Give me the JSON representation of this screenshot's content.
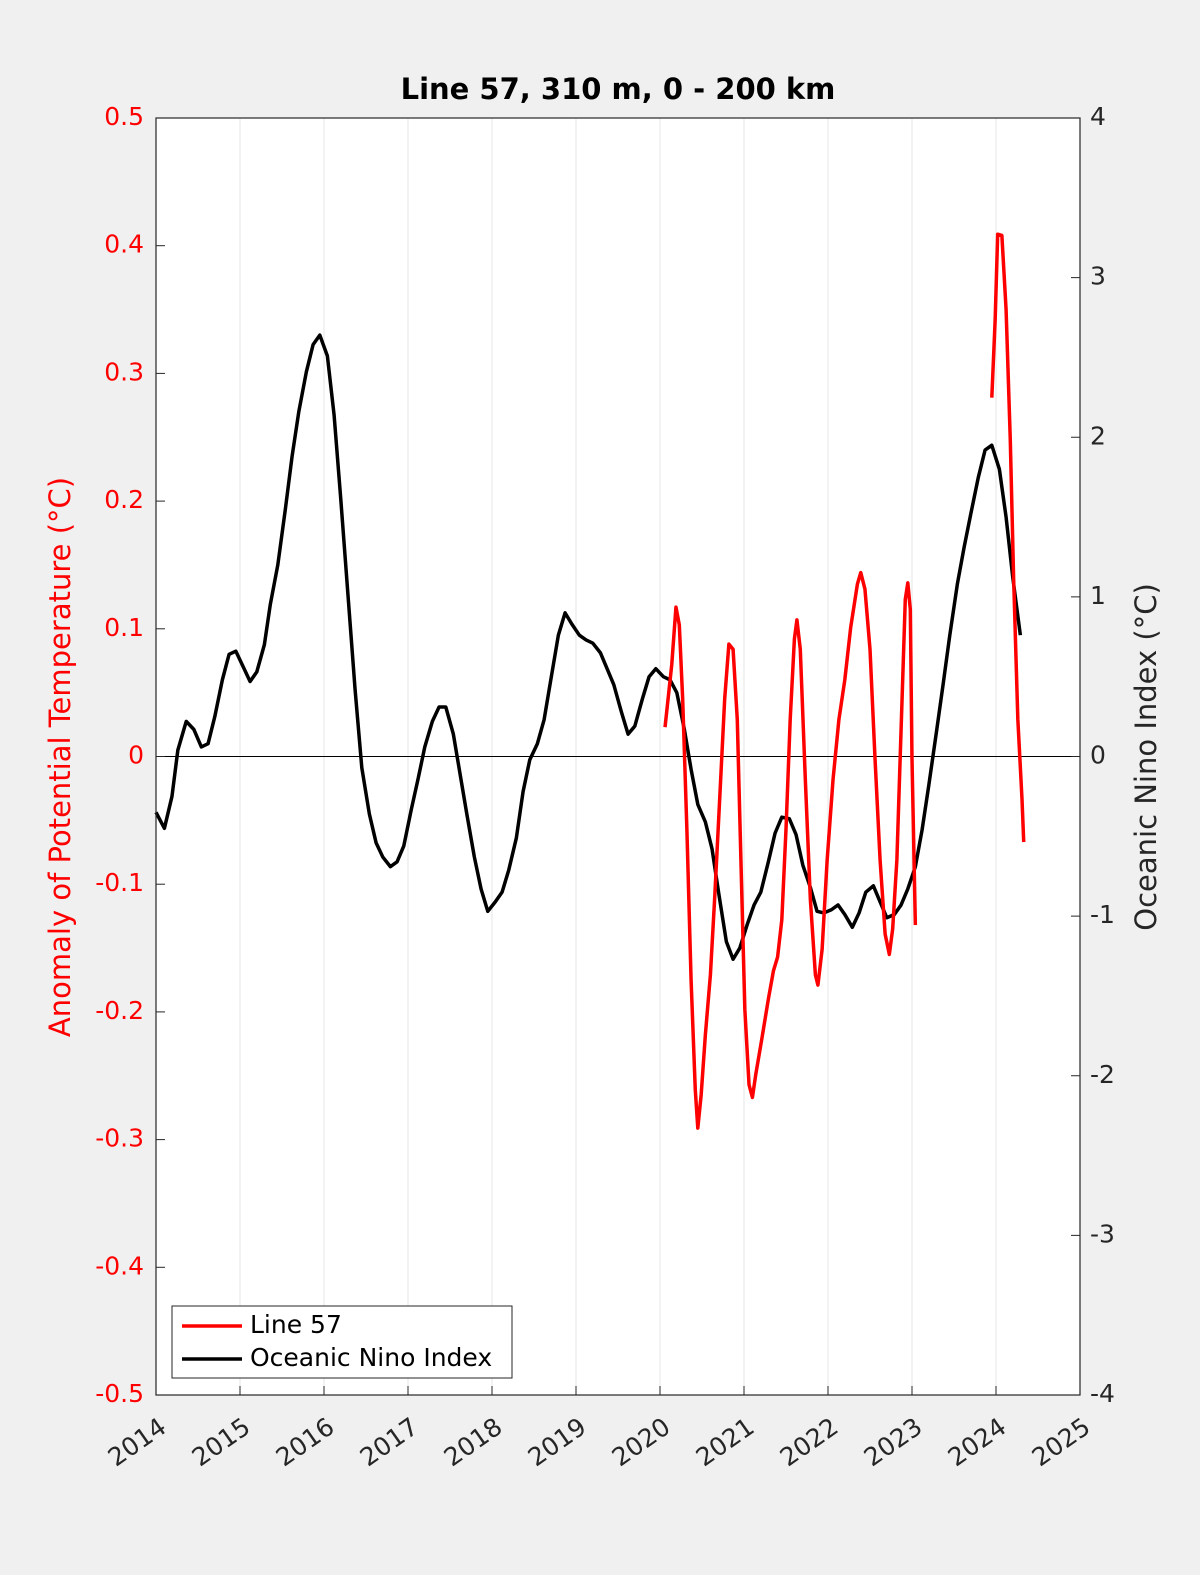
{
  "chart_data": {
    "type": "line",
    "title": "Line 57, 310 m, 0 - 200 km",
    "ylabel": "Anomaly of Potential Temperature (°C)",
    "y2label": "Oceanic Nino Index (°C)",
    "xlim": [
      2014,
      2025
    ],
    "xticks": [
      2014,
      2015,
      2016,
      2017,
      2018,
      2019,
      2020,
      2021,
      2022,
      2023,
      2024,
      2025
    ],
    "ylim": [
      -0.5,
      0.5
    ],
    "yticks": [
      -0.5,
      -0.4,
      -0.3,
      -0.2,
      -0.1,
      0,
      0.1,
      0.2,
      0.3,
      0.4,
      0.5
    ],
    "y2lim": [
      -4,
      4
    ],
    "y2ticks": [
      -4,
      -3,
      -2,
      -1,
      0,
      1,
      2,
      3,
      4
    ],
    "grid": true,
    "zero_line": true,
    "legend": "lower left",
    "ylabel_color": "#ff0000",
    "series": [
      {
        "name": "Line 57",
        "color": "#ff0000",
        "x": [
          2020.06,
          2020.14,
          2020.19,
          2020.23,
          2020.27,
          2020.32,
          2020.37,
          2020.42,
          2020.45,
          2020.49,
          2020.54,
          2020.6,
          2020.65,
          2020.71,
          2020.77,
          2020.82,
          2020.87,
          2020.92,
          2020.96,
          2021.01,
          2021.06,
          2021.1,
          2021.14,
          2021.21,
          2021.29,
          2021.35,
          2021.4,
          2021.45,
          2021.5,
          2021.55,
          2021.6,
          2021.63,
          2021.67,
          2021.73,
          2021.79,
          2021.85,
          2021.88,
          2021.93,
          2021.99,
          2022.06,
          2022.13,
          2022.2,
          2022.27,
          2022.35,
          2022.39,
          2022.44,
          2022.5,
          2022.56,
          2022.62,
          2022.68,
          2022.73,
          2022.77,
          2022.82,
          2022.87,
          2022.92,
          2022.95,
          2022.98,
          2023.0,
          2023.04,
          null,
          2023.95,
          2023.99,
          2024.02,
          2024.07,
          2024.12,
          2024.17,
          2024.21,
          2024.26,
          2024.31,
          2024.33
        ],
        "values": [
          0.023,
          0.072,
          0.117,
          0.103,
          0.045,
          -0.057,
          -0.175,
          -0.261,
          -0.291,
          -0.265,
          -0.218,
          -0.171,
          -0.112,
          -0.034,
          0.045,
          0.088,
          0.084,
          0.029,
          -0.073,
          -0.198,
          -0.257,
          -0.267,
          -0.249,
          -0.222,
          -0.19,
          -0.168,
          -0.157,
          -0.128,
          -0.057,
          0.029,
          0.092,
          0.107,
          0.084,
          -0.018,
          -0.112,
          -0.171,
          -0.179,
          -0.151,
          -0.081,
          -0.018,
          0.029,
          0.06,
          0.101,
          0.135,
          0.144,
          0.131,
          0.084,
          -0.002,
          -0.081,
          -0.139,
          -0.155,
          -0.135,
          -0.081,
          0.021,
          0.123,
          0.136,
          0.115,
          -0.002,
          -0.132,
          null,
          0.281,
          0.342,
          0.409,
          0.408,
          0.35,
          0.248,
          0.139,
          0.029,
          -0.034,
          -0.067
        ]
      },
      {
        "name": "Oceanic Nino Index",
        "color": "#000000",
        "axis": "y2",
        "x": [
          2014.0,
          2014.1,
          2014.19,
          2014.26,
          2014.36,
          2014.45,
          2014.54,
          2014.62,
          2014.7,
          2014.79,
          2014.87,
          2014.95,
          2015.04,
          2015.12,
          2015.2,
          2015.29,
          2015.36,
          2015.45,
          2015.54,
          2015.62,
          2015.7,
          2015.79,
          2015.87,
          2015.95,
          2016.04,
          2016.12,
          2016.2,
          2016.29,
          2016.37,
          2016.45,
          2016.54,
          2016.62,
          2016.7,
          2016.79,
          2016.87,
          2016.95,
          2017.04,
          2017.12,
          2017.2,
          2017.29,
          2017.37,
          2017.45,
          2017.54,
          2017.62,
          2017.7,
          2017.79,
          2017.87,
          2017.95,
          2018.04,
          2018.12,
          2018.2,
          2018.29,
          2018.37,
          2018.45,
          2018.54,
          2018.62,
          2018.7,
          2018.79,
          2018.87,
          2018.95,
          2019.04,
          2019.12,
          2019.2,
          2019.29,
          2019.37,
          2019.45,
          2019.54,
          2019.62,
          2019.7,
          2019.79,
          2019.87,
          2019.95,
          2020.04,
          2020.12,
          2020.2,
          2020.29,
          2020.37,
          2020.45,
          2020.54,
          2020.62,
          2020.7,
          2020.79,
          2020.87,
          2020.95,
          2021.04,
          2021.12,
          2021.2,
          2021.29,
          2021.37,
          2021.45,
          2021.54,
          2021.62,
          2021.7,
          2021.79,
          2021.87,
          2021.95,
          2022.04,
          2022.12,
          2022.2,
          2022.29,
          2022.37,
          2022.45,
          2022.54,
          2022.62,
          2022.7,
          2022.79,
          2022.87,
          2022.95,
          2023.04,
          2023.12,
          2023.2,
          2023.29,
          2023.37,
          2023.45,
          2023.54,
          2023.62,
          2023.7,
          2023.79,
          2023.87,
          2023.95,
          2024.04,
          2024.12,
          2024.2,
          2024.29
        ],
        "values": [
          -0.35,
          -0.45,
          -0.25,
          0.04,
          0.22,
          0.17,
          0.06,
          0.08,
          0.25,
          0.48,
          0.64,
          0.66,
          0.56,
          0.47,
          0.53,
          0.7,
          0.95,
          1.2,
          1.55,
          1.88,
          2.16,
          2.41,
          2.58,
          2.64,
          2.51,
          2.14,
          1.61,
          0.98,
          0.42,
          -0.07,
          -0.36,
          -0.54,
          -0.63,
          -0.69,
          -0.66,
          -0.56,
          -0.33,
          -0.14,
          0.06,
          0.22,
          0.31,
          0.31,
          0.14,
          -0.11,
          -0.36,
          -0.63,
          -0.83,
          -0.97,
          -0.91,
          -0.85,
          -0.71,
          -0.51,
          -0.22,
          -0.02,
          0.08,
          0.23,
          0.48,
          0.76,
          0.9,
          0.83,
          0.76,
          0.73,
          0.71,
          0.65,
          0.55,
          0.45,
          0.28,
          0.14,
          0.19,
          0.36,
          0.5,
          0.55,
          0.5,
          0.48,
          0.4,
          0.17,
          -0.08,
          -0.3,
          -0.41,
          -0.58,
          -0.86,
          -1.16,
          -1.27,
          -1.2,
          -1.05,
          -0.93,
          -0.85,
          -0.66,
          -0.48,
          -0.38,
          -0.39,
          -0.49,
          -0.68,
          -0.82,
          -0.97,
          -0.98,
          -0.96,
          -0.93,
          -0.99,
          -1.07,
          -0.98,
          -0.85,
          -0.81,
          -0.91,
          -1.01,
          -0.99,
          -0.93,
          -0.83,
          -0.69,
          -0.46,
          -0.18,
          0.15,
          0.45,
          0.76,
          1.08,
          1.31,
          1.52,
          1.75,
          1.92,
          1.95,
          1.8,
          1.5,
          1.12,
          0.76
        ]
      }
    ]
  }
}
